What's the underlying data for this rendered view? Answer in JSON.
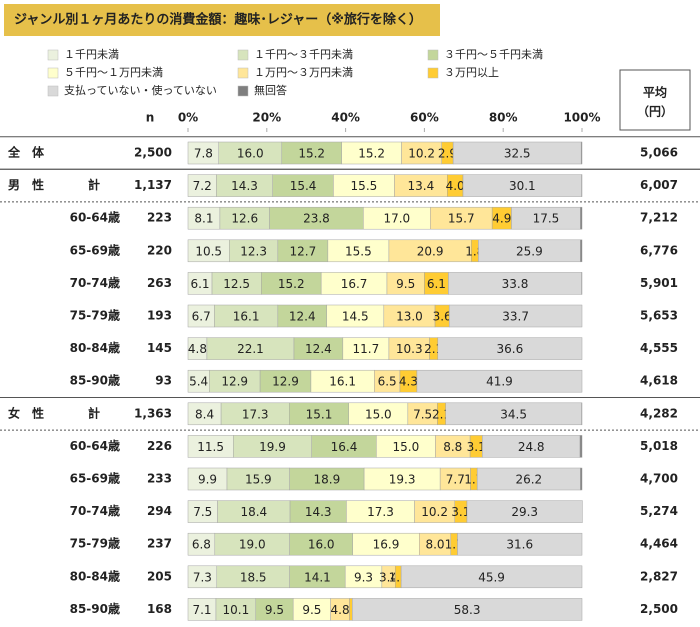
{
  "chart_data": {
    "type": "stacked-bar",
    "title": "ジャンル別１ヶ月あたりの消費金額：趣味･レジャー（※旅行を除く）",
    "n_label": "n",
    "mean_label": "平均",
    "mean_unit": "（円）",
    "categories": [
      "全　体",
      "計",
      "60-64歳",
      "65-69歳",
      "70-74歳",
      "75-79歳",
      "80-84歳",
      "85-90歳",
      "計",
      "60-64歳",
      "65-69歳",
      "70-74歳",
      "75-79歳",
      "80-84歳",
      "85-90歳"
    ],
    "group_labels": [
      null,
      "男　性",
      null,
      null,
      null,
      null,
      null,
      null,
      "女　性",
      null,
      null,
      null,
      null,
      null,
      null
    ],
    "n": [
      "2,500",
      "1,137",
      "223",
      "220",
      "263",
      "193",
      "145",
      "93",
      "1,363",
      "226",
      "233",
      "294",
      "237",
      "205",
      "168"
    ],
    "means": [
      "5,066",
      "6,007",
      "7,212",
      "6,776",
      "5,901",
      "5,653",
      "4,555",
      "4,618",
      "4,282",
      "5,018",
      "4,700",
      "5,274",
      "4,464",
      "2,827",
      "2,500"
    ],
    "xlim": [
      0,
      100
    ],
    "xticks": [
      {
        "value": 0,
        "label": "0%"
      },
      {
        "value": 20,
        "label": "20%"
      },
      {
        "value": 40,
        "label": "40%"
      },
      {
        "value": 60,
        "label": "60%"
      },
      {
        "value": 80,
        "label": "80%"
      },
      {
        "value": 100,
        "label": "100%"
      }
    ],
    "series": [
      {
        "name": "１千円未満",
        "color": "#ebf1de",
        "values": [
          7.8,
          7.2,
          8.1,
          10.5,
          6.1,
          6.7,
          4.8,
          5.4,
          8.4,
          11.5,
          9.9,
          7.5,
          6.8,
          7.3,
          7.1
        ],
        "value_labels": [
          "7.8",
          "7.2",
          "8.1",
          "10.5",
          "6.1",
          "6.7",
          "4.8",
          "5.4",
          "8.4",
          "11.5",
          "9.9",
          "7.5",
          "6.8",
          "7.3",
          "7.1"
        ]
      },
      {
        "name": "１千円～３千円未満",
        "color": "#d7e4bd",
        "values": [
          16.0,
          14.3,
          12.6,
          12.3,
          12.5,
          16.1,
          22.1,
          12.9,
          17.3,
          19.9,
          15.9,
          18.4,
          19.0,
          18.5,
          10.1
        ],
        "value_labels": [
          "16.0",
          "14.3",
          "12.6",
          "12.3",
          "12.5",
          "16.1",
          "22.1",
          "12.9",
          "17.3",
          "19.9",
          "15.9",
          "18.4",
          "19.0",
          "18.5",
          "10.1"
        ]
      },
      {
        "name": "３千円～５千円未満",
        "color": "#c3d69b",
        "values": [
          15.2,
          15.4,
          23.8,
          12.7,
          15.2,
          12.4,
          12.4,
          12.9,
          15.1,
          16.4,
          18.9,
          14.3,
          16.0,
          14.1,
          9.5
        ],
        "value_labels": [
          "15.2",
          "15.4",
          "23.8",
          "12.7",
          "15.2",
          "12.4",
          "12.4",
          "12.9",
          "15.1",
          "16.4",
          "18.9",
          "14.3",
          "16.0",
          "14.1",
          "9.5"
        ]
      },
      {
        "name": "５千円～１万円未満",
        "color": "#ffffcc",
        "values": [
          15.2,
          15.5,
          17.0,
          15.5,
          16.7,
          14.5,
          11.7,
          16.1,
          15.0,
          15.0,
          19.3,
          17.3,
          16.9,
          9.3,
          9.5
        ],
        "value_labels": [
          "15.2",
          "15.5",
          "17.0",
          "15.5",
          "16.7",
          "14.5",
          "11.7",
          "16.1",
          "15.0",
          "15.0",
          "19.3",
          "17.3",
          "16.9",
          "9.3",
          "9.5"
        ]
      },
      {
        "name": "１万円～３万円未満",
        "color": "#ffe699",
        "values": [
          10.2,
          13.4,
          15.7,
          20.9,
          9.5,
          13.0,
          10.3,
          6.5,
          7.5,
          8.8,
          7.7,
          10.2,
          8.0,
          3.4,
          4.8
        ],
        "value_labels": [
          "10.2",
          "13.4",
          "15.7",
          "20.9",
          "9.5",
          "13.0",
          "10.3",
          "6.5",
          "7.5",
          "8.8",
          "7.7",
          "10.2",
          "8.0",
          "3.4",
          "4.8"
        ]
      },
      {
        "name": "３万円以上",
        "color": "#ffcc33",
        "values": [
          2.9,
          4.0,
          4.9,
          1.8,
          6.1,
          3.6,
          2.1,
          4.3,
          2.1,
          3.1,
          1.7,
          3.1,
          1.7,
          1.5,
          0.7
        ],
        "value_labels": [
          "2.9",
          "4.0",
          "4.9",
          "1.8",
          "6.1",
          "3.6",
          "2.1",
          "4.3",
          "2.1",
          "3.1",
          "1.7",
          "3.1",
          "1.7",
          "1.5",
          null
        ]
      },
      {
        "name": "支払っていない・使っていない",
        "color": "#d9d9d9",
        "values": [
          32.5,
          30.1,
          17.5,
          25.9,
          33.8,
          33.7,
          36.6,
          41.9,
          34.5,
          24.8,
          26.2,
          29.3,
          31.6,
          45.9,
          58.3
        ],
        "value_labels": [
          "32.5",
          "30.1",
          "17.5",
          "25.9",
          "33.8",
          "33.7",
          "36.6",
          "41.9",
          "34.5",
          "24.8",
          "26.2",
          "29.3",
          "31.6",
          "45.9",
          "58.3"
        ]
      },
      {
        "name": "無回答",
        "color": "#7f7f7f",
        "values": [
          0.2,
          0.1,
          0.4,
          0.4,
          0.1,
          0,
          0,
          0,
          0.1,
          0.5,
          0.4,
          0,
          0,
          0,
          0
        ]
      }
    ]
  }
}
